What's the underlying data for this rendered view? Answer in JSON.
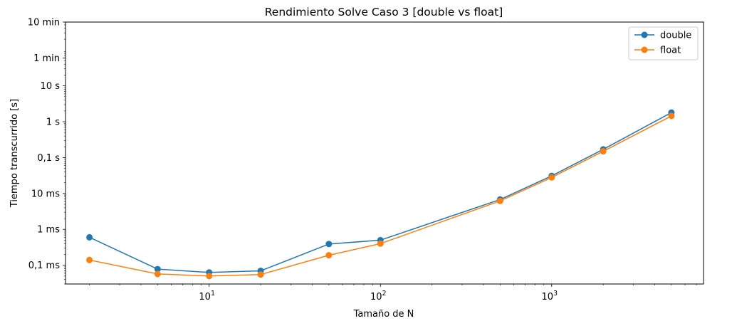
{
  "chart_data": {
    "type": "line",
    "title": "Rendimiento Solve Caso 3 [double vs float]",
    "xlabel": "Tamaño de N",
    "ylabel": "Tiempo transcurrido [s]",
    "xscale": "log",
    "yscale": "log",
    "xlim": [
      1.45,
      7700
    ],
    "ylim": [
      3e-05,
      600
    ],
    "x": [
      2,
      5,
      10,
      20,
      50,
      100,
      500,
      1000,
      2000,
      5000
    ],
    "series": [
      {
        "name": "double",
        "color": "#1f77b4",
        "values": [
          0.0006,
          7.8e-05,
          6.3e-05,
          7e-05,
          0.00039,
          0.0005,
          0.0068,
          0.031,
          0.17,
          1.8
        ]
      },
      {
        "name": "float",
        "color": "#ff7f0e",
        "values": [
          0.00014,
          5.7e-05,
          5e-05,
          5.5e-05,
          0.00019,
          0.0004,
          0.0062,
          0.028,
          0.15,
          1.45
        ]
      }
    ],
    "x_ticks": [
      {
        "value": 10,
        "base": "10",
        "exp": "1"
      },
      {
        "value": 100,
        "base": "10",
        "exp": "2"
      },
      {
        "value": 1000,
        "base": "10",
        "exp": "3"
      }
    ],
    "y_ticks": [
      {
        "value": 0.0001,
        "label": "0,1 ms"
      },
      {
        "value": 0.001,
        "label": "1 ms"
      },
      {
        "value": 0.01,
        "label": "10 ms"
      },
      {
        "value": 0.1,
        "label": "0,1 s"
      },
      {
        "value": 1,
        "label": "1 s"
      },
      {
        "value": 10,
        "label": "10 s"
      },
      {
        "value": 60,
        "label": "1 min"
      },
      {
        "value": 600,
        "label": "10 min"
      }
    ],
    "legend_position": "top-right",
    "grid": false
  }
}
